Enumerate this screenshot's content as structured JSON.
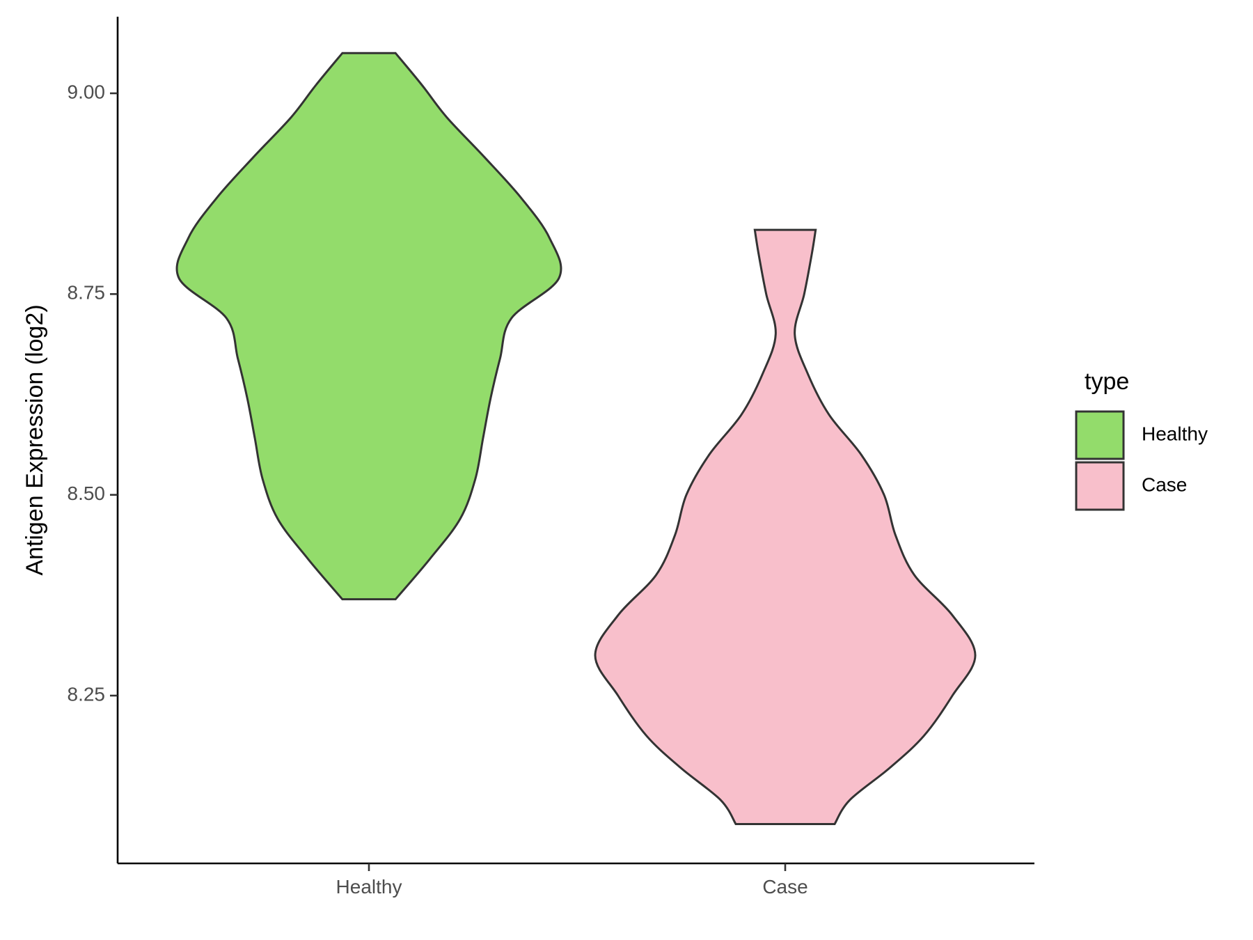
{
  "chart_data": {
    "type": "violin",
    "title": "",
    "xlabel": "",
    "ylabel": "Antigen Expression (log2)",
    "ylim": [
      8.04,
      9.1
    ],
    "yticks": [
      8.25,
      8.5,
      8.75,
      9.0
    ],
    "ytick_labels": [
      "8.25",
      "8.50",
      "8.75",
      "9.00"
    ],
    "categories": [
      "Healthy",
      "Case"
    ],
    "legend": {
      "title": "type",
      "position": "right",
      "entries": [
        "Healthy",
        "Case"
      ]
    },
    "series": [
      {
        "name": "Healthy",
        "color": "#93DC6B",
        "min": 8.37,
        "max": 9.05,
        "profile": [
          [
            8.37,
            0.14
          ],
          [
            8.42,
            0.32
          ],
          [
            8.47,
            0.48
          ],
          [
            8.52,
            0.56
          ],
          [
            8.57,
            0.6
          ],
          [
            8.62,
            0.64
          ],
          [
            8.67,
            0.69
          ],
          [
            8.72,
            0.75
          ],
          [
            8.77,
            1.0
          ],
          [
            8.82,
            0.95
          ],
          [
            8.87,
            0.8
          ],
          [
            8.92,
            0.61
          ],
          [
            8.97,
            0.41
          ],
          [
            9.01,
            0.28
          ],
          [
            9.05,
            0.14
          ]
        ]
      },
      {
        "name": "Case",
        "color": "#F8BFCB",
        "min": 8.09,
        "max": 8.83,
        "profile": [
          [
            8.09,
            0.26
          ],
          [
            8.12,
            0.34
          ],
          [
            8.16,
            0.55
          ],
          [
            8.2,
            0.73
          ],
          [
            8.25,
            0.88
          ],
          [
            8.3,
            1.0
          ],
          [
            8.35,
            0.88
          ],
          [
            8.4,
            0.68
          ],
          [
            8.45,
            0.58
          ],
          [
            8.5,
            0.52
          ],
          [
            8.55,
            0.4
          ],
          [
            8.6,
            0.23
          ],
          [
            8.65,
            0.12
          ],
          [
            8.7,
            0.05
          ],
          [
            8.75,
            0.1
          ],
          [
            8.8,
            0.14
          ],
          [
            8.83,
            0.16
          ]
        ]
      }
    ]
  }
}
